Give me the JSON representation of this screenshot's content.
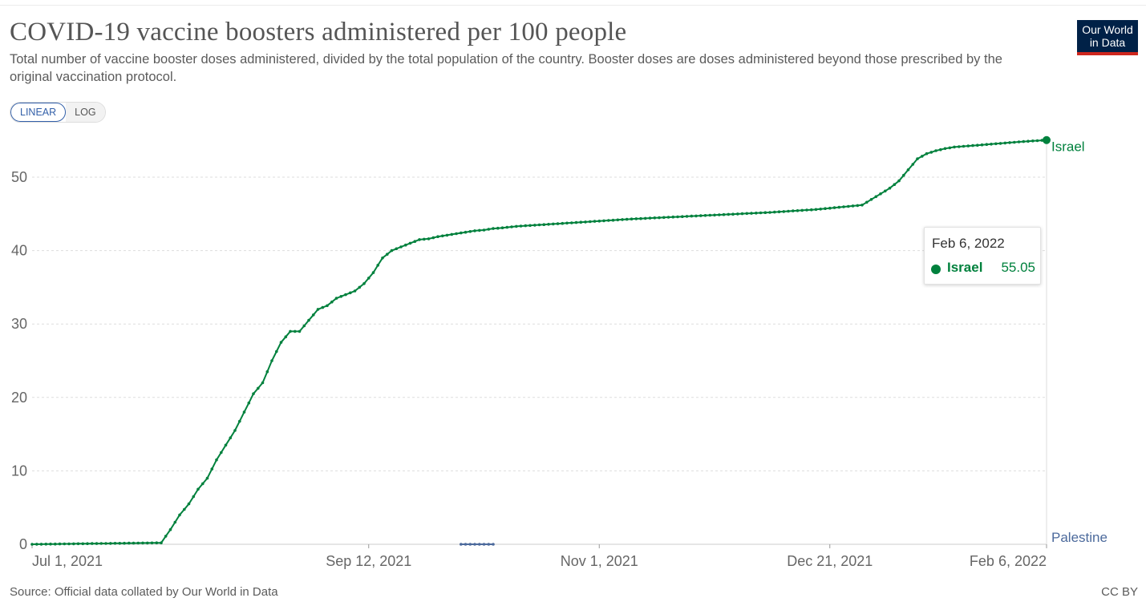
{
  "header": {
    "title": "COVID-19 vaccine boosters administered per 100 people",
    "subtitle": "Total number of vaccine booster doses administered, divided by the total population of the country. Booster doses are doses administered beyond those prescribed by the original vaccination protocol.",
    "logo_line1": "Our World",
    "logo_line2": "in Data"
  },
  "controls": {
    "linear_label": "LINEAR",
    "log_label": "LOG",
    "selected": "LINEAR"
  },
  "tooltip": {
    "date": "Feb 6, 2022",
    "entity": "Israel",
    "value": "55.05"
  },
  "footer": {
    "source": "Source: Official data collated by Our World in Data",
    "license": "CC BY"
  },
  "colors": {
    "israel": "#00813d",
    "palestine": "#4c6a9c",
    "grid": "#dddddd",
    "axis_text": "#666666"
  },
  "chart_data": {
    "type": "line",
    "title": "COVID-19 vaccine boosters administered per 100 people",
    "xlabel": "",
    "ylabel": "",
    "ylim": [
      0,
      55
    ],
    "y_ticks": [
      0,
      10,
      20,
      30,
      40,
      50
    ],
    "x_range_days": [
      0,
      220
    ],
    "x_ticks": [
      {
        "day": 0,
        "label": "Jul 1, 2021"
      },
      {
        "day": 73,
        "label": "Sep 12, 2021"
      },
      {
        "day": 123,
        "label": "Nov 1, 2021"
      },
      {
        "day": 173,
        "label": "Dec 21, 2021"
      },
      {
        "day": 220,
        "label": "Feb 6, 2022"
      }
    ],
    "series": [
      {
        "name": "Israel",
        "x_days": [
          0,
          28,
          30,
          32,
          34,
          36,
          38,
          40,
          42,
          44,
          46,
          48,
          50,
          52,
          54,
          56,
          58,
          60,
          62,
          64,
          66,
          68,
          70,
          72,
          74,
          76,
          78,
          80,
          82,
          84,
          86,
          88,
          90,
          92,
          94,
          96,
          98,
          100,
          102,
          105,
          110,
          115,
          120,
          125,
          130,
          140,
          150,
          160,
          170,
          180,
          186,
          188,
          190,
          192,
          194,
          196,
          198,
          200,
          204,
          210,
          215,
          220
        ],
        "values": [
          0,
          0.2,
          2,
          4,
          5.5,
          7.5,
          9,
          11.5,
          13.5,
          15.5,
          18,
          20.5,
          22,
          25,
          27.5,
          29,
          29,
          30.5,
          32,
          32.5,
          33.5,
          34,
          34.5,
          35.5,
          37,
          39,
          40,
          40.5,
          41,
          41.5,
          41.6,
          41.9,
          42.1,
          42.3,
          42.5,
          42.7,
          42.8,
          43,
          43.1,
          43.3,
          43.5,
          43.7,
          43.9,
          44.1,
          44.3,
          44.6,
          44.9,
          45.2,
          45.6,
          46.2,
          48.5,
          49.5,
          51,
          52.5,
          53.2,
          53.6,
          53.9,
          54.1,
          54.3,
          54.6,
          54.85,
          55.05
        ],
        "end_label": "Israel"
      },
      {
        "name": "Palestine",
        "x_days": [
          93,
          94,
          95,
          96,
          97,
          98,
          100
        ],
        "values": [
          0,
          0,
          0,
          0,
          0,
          0,
          0
        ],
        "end_label": "Palestine"
      }
    ]
  }
}
